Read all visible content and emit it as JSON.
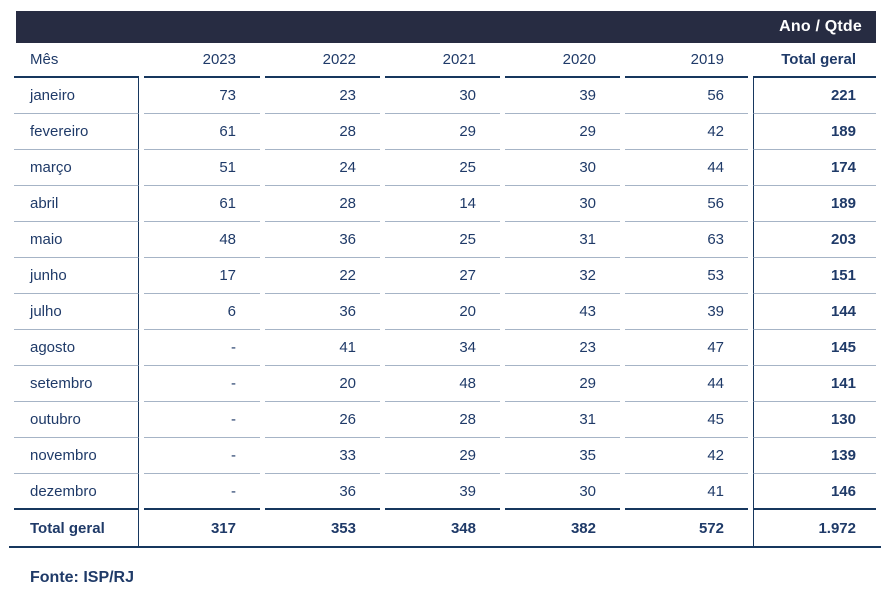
{
  "header": {
    "corner_label": "Ano / Qtde"
  },
  "table": {
    "columns": [
      "Mês",
      "2023",
      "2022",
      "2021",
      "2020",
      "2019",
      "Total geral"
    ],
    "rows": [
      {
        "month": "janeiro",
        "values": [
          "73",
          "23",
          "30",
          "39",
          "56"
        ],
        "total": "221"
      },
      {
        "month": "fevereiro",
        "values": [
          "61",
          "28",
          "29",
          "29",
          "42"
        ],
        "total": "189"
      },
      {
        "month": "março",
        "values": [
          "51",
          "24",
          "25",
          "30",
          "44"
        ],
        "total": "174"
      },
      {
        "month": "abril",
        "values": [
          "61",
          "28",
          "14",
          "30",
          "56"
        ],
        "total": "189"
      },
      {
        "month": "maio",
        "values": [
          "48",
          "36",
          "25",
          "31",
          "63"
        ],
        "total": "203"
      },
      {
        "month": "junho",
        "values": [
          "17",
          "22",
          "27",
          "32",
          "53"
        ],
        "total": "151"
      },
      {
        "month": "julho",
        "values": [
          "6",
          "36",
          "20",
          "43",
          "39"
        ],
        "total": "144"
      },
      {
        "month": "agosto",
        "values": [
          "-",
          "41",
          "34",
          "23",
          "47"
        ],
        "total": "145"
      },
      {
        "month": "setembro",
        "values": [
          "-",
          "20",
          "48",
          "29",
          "44"
        ],
        "total": "141"
      },
      {
        "month": "outubro",
        "values": [
          "-",
          "26",
          "28",
          "31",
          "45"
        ],
        "total": "130"
      },
      {
        "month": "novembro",
        "values": [
          "-",
          "33",
          "29",
          "35",
          "42"
        ],
        "total": "139"
      },
      {
        "month": "dezembro",
        "values": [
          "-",
          "36",
          "39",
          "30",
          "41"
        ],
        "total": "146"
      }
    ],
    "total_row": {
      "label": "Total geral",
      "values": [
        "317",
        "353",
        "348",
        "382",
        "572"
      ],
      "total": "1.972"
    }
  },
  "footer": {
    "source": "Fonte: ISP/RJ"
  },
  "colors": {
    "header_bar": "#272c42",
    "text_navy": "#1f3a68",
    "rule_dark": "#17375e",
    "rule_light": "#a6b4c6"
  },
  "chart_data": {
    "type": "table",
    "title": "Ano / Qtde",
    "row_label": "Mês",
    "categories": [
      "janeiro",
      "fevereiro",
      "março",
      "abril",
      "maio",
      "junho",
      "julho",
      "agosto",
      "setembro",
      "outubro",
      "novembro",
      "dezembro"
    ],
    "series": [
      {
        "name": "2023",
        "values": [
          73,
          61,
          51,
          61,
          48,
          17,
          6,
          null,
          null,
          null,
          null,
          null
        ],
        "total": 317
      },
      {
        "name": "2022",
        "values": [
          23,
          28,
          24,
          28,
          36,
          22,
          36,
          41,
          20,
          26,
          33,
          36
        ],
        "total": 353
      },
      {
        "name": "2021",
        "values": [
          30,
          29,
          25,
          14,
          25,
          27,
          20,
          34,
          48,
          28,
          29,
          39
        ],
        "total": 348
      },
      {
        "name": "2020",
        "values": [
          39,
          29,
          30,
          30,
          31,
          32,
          43,
          23,
          29,
          31,
          35,
          30
        ],
        "total": 382
      },
      {
        "name": "2019",
        "values": [
          56,
          42,
          44,
          56,
          63,
          53,
          39,
          47,
          44,
          45,
          42,
          41
        ],
        "total": 572
      }
    ],
    "row_totals": [
      221,
      189,
      174,
      189,
      203,
      151,
      144,
      145,
      141,
      130,
      139,
      146
    ],
    "grand_total": 1972,
    "source": "Fonte: ISP/RJ"
  }
}
